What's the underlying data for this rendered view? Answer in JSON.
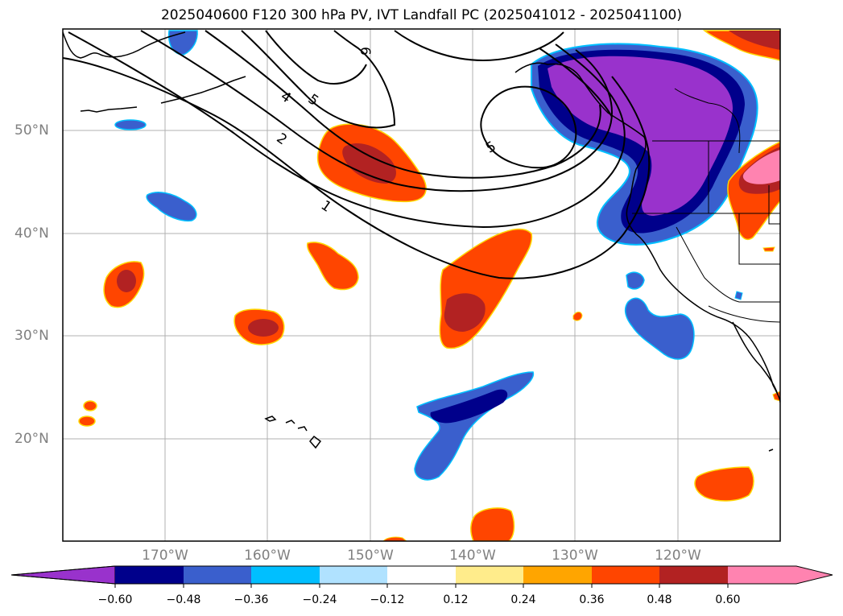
{
  "title": "2025040600 F120 300 hPa PV, IVT Landfall PC (2025041012 - 2025041100)",
  "lat_labels": [
    "50°N",
    "40°N",
    "30°N",
    "20°N"
  ],
  "lon_labels": [
    "170°W",
    "160°W",
    "150°W",
    "140°W",
    "130°W",
    "120°W"
  ],
  "contour_labels": [
    "1",
    "2",
    "4",
    "5",
    "6",
    "5"
  ],
  "colorbar": {
    "ticks": [
      "−0.60",
      "−0.48",
      "−0.36",
      "−0.24",
      "−0.12",
      "0.12",
      "0.24",
      "0.36",
      "0.48",
      "0.60"
    ],
    "colors": [
      "#9932cc",
      "#00008b",
      "#3a5fcd",
      "#00bfff",
      "#b0e2ff",
      "#ffffff",
      "#ffec8b",
      "#ffa500",
      "#ff4500",
      "#b22222",
      "#ff83b0"
    ]
  },
  "colors": {
    "purple": "#9932cc",
    "navy": "#00008b",
    "royal_blue": "#3a5fcd",
    "sky_blue": "#00bfff",
    "orange_red": "#ff4500",
    "firebrick": "#b22222",
    "pink": "#ff83b0",
    "gold": "#ffd700"
  }
}
